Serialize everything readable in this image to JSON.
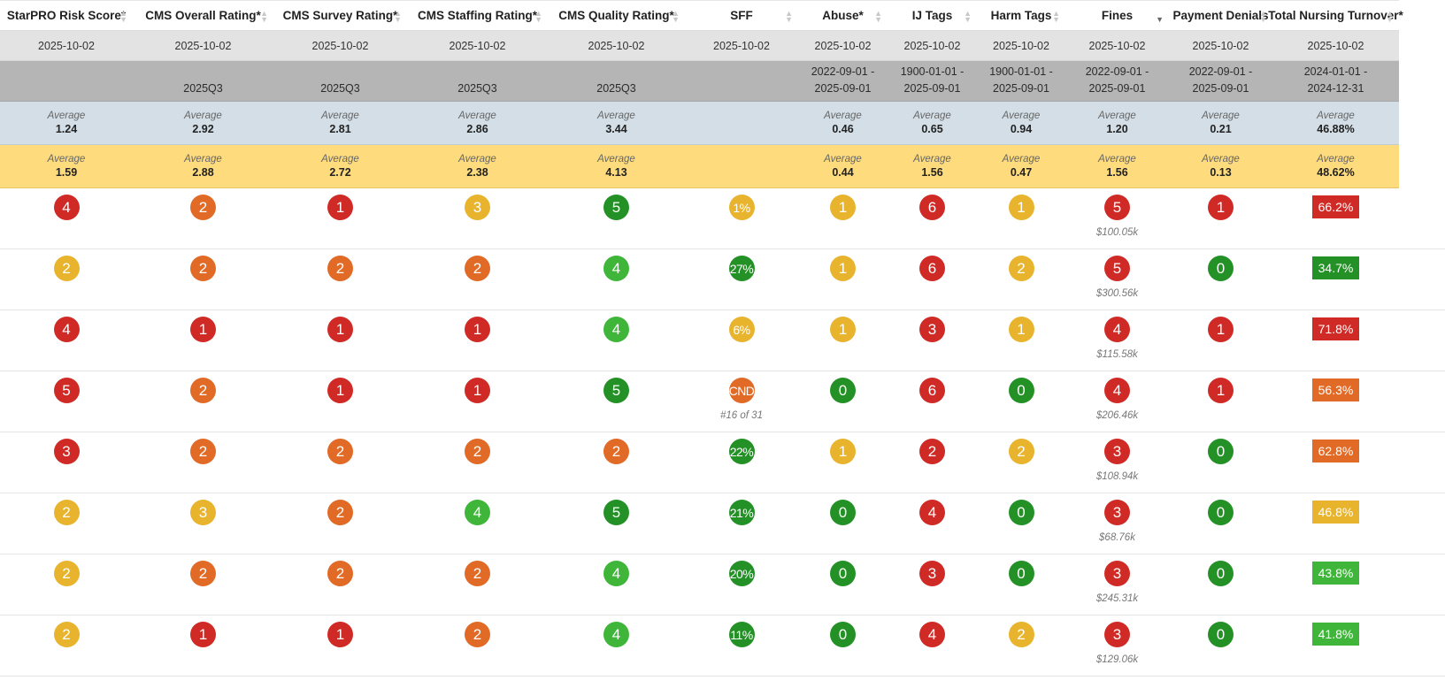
{
  "columns": [
    {
      "label": "StarPRO Risk Score*",
      "date": "2025-10-02",
      "period": [
        "",
        ""
      ],
      "avg_all": "1.24",
      "avg_sel": "1.59"
    },
    {
      "label": "CMS Overall Rating*",
      "date": "2025-10-02",
      "period": [
        "",
        "2025Q3"
      ],
      "avg_all": "2.92",
      "avg_sel": "2.88"
    },
    {
      "label": "CMS Survey Rating*",
      "date": "2025-10-02",
      "period": [
        "",
        "2025Q3"
      ],
      "avg_all": "2.81",
      "avg_sel": "2.72"
    },
    {
      "label": "CMS Staffing Rating*",
      "date": "2025-10-02",
      "period": [
        "",
        "2025Q3"
      ],
      "avg_all": "2.86",
      "avg_sel": "2.38"
    },
    {
      "label": "CMS Quality Rating*",
      "date": "2025-10-02",
      "period": [
        "",
        "2025Q3"
      ],
      "avg_all": "3.44",
      "avg_sel": "4.13"
    },
    {
      "label": "SFF",
      "date": "2025-10-02",
      "period": [
        "",
        ""
      ],
      "avg_all": "",
      "avg_sel": ""
    },
    {
      "label": "Abuse*",
      "date": "2025-10-02",
      "period": [
        "2022-09-01 -",
        "2025-09-01"
      ],
      "avg_all": "0.46",
      "avg_sel": "0.44"
    },
    {
      "label": "IJ Tags",
      "date": "2025-10-02",
      "period": [
        "1900-01-01 -",
        "2025-09-01"
      ],
      "avg_all": "0.65",
      "avg_sel": "1.56"
    },
    {
      "label": "Harm Tags",
      "date": "2025-10-02",
      "period": [
        "1900-01-01 -",
        "2025-09-01"
      ],
      "avg_all": "0.94",
      "avg_sel": "0.47"
    },
    {
      "label": "Fines",
      "date": "2025-10-02",
      "period": [
        "2022-09-01 -",
        "2025-09-01"
      ],
      "avg_all": "1.20",
      "avg_sel": "1.56"
    },
    {
      "label": "Payment Denials",
      "date": "2025-10-02",
      "period": [
        "2022-09-01 -",
        "2025-09-01"
      ],
      "avg_all": "0.21",
      "avg_sel": "0.13"
    },
    {
      "label": "Total Nursing Turnover*",
      "date": "2025-10-02",
      "period": [
        "2024-01-01 -",
        "2024-12-31"
      ],
      "avg_all": "46.88%",
      "avg_sel": "48.62%"
    }
  ],
  "avg_label": "Average",
  "colors": {
    "red": "#d02a26",
    "orange": "#e16a26",
    "yellow": "#e8b42e",
    "light_green": "#3fb63a",
    "dark_green": "#249126"
  },
  "rows": [
    {
      "cells": [
        {
          "v": "4",
          "c": "red"
        },
        {
          "v": "2",
          "c": "orange"
        },
        {
          "v": "1",
          "c": "red"
        },
        {
          "v": "3",
          "c": "yellow"
        },
        {
          "v": "5",
          "c": "dgreen"
        },
        {
          "v": "1%",
          "c": "yellow",
          "sub": ""
        },
        {
          "v": "1",
          "c": "yellow"
        },
        {
          "v": "6",
          "c": "red"
        },
        {
          "v": "1",
          "c": "yellow"
        },
        {
          "v": "5",
          "c": "red",
          "sub": "$100.05k"
        },
        {
          "v": "1",
          "c": "red"
        },
        {
          "v": "66.2%",
          "c": "red"
        }
      ]
    },
    {
      "cells": [
        {
          "v": "2",
          "c": "yellow"
        },
        {
          "v": "2",
          "c": "orange"
        },
        {
          "v": "2",
          "c": "orange"
        },
        {
          "v": "2",
          "c": "orange"
        },
        {
          "v": "4",
          "c": "lgreen"
        },
        {
          "v": "27%",
          "c": "dgreen",
          "sub": ""
        },
        {
          "v": "1",
          "c": "yellow"
        },
        {
          "v": "6",
          "c": "red"
        },
        {
          "v": "2",
          "c": "yellow"
        },
        {
          "v": "5",
          "c": "red",
          "sub": "$300.56k"
        },
        {
          "v": "0",
          "c": "dgreen"
        },
        {
          "v": "34.7%",
          "c": "dgreen"
        }
      ]
    },
    {
      "cells": [
        {
          "v": "4",
          "c": "red"
        },
        {
          "v": "1",
          "c": "red"
        },
        {
          "v": "1",
          "c": "red"
        },
        {
          "v": "1",
          "c": "red"
        },
        {
          "v": "4",
          "c": "lgreen"
        },
        {
          "v": "6%",
          "c": "yellow",
          "sub": ""
        },
        {
          "v": "1",
          "c": "yellow"
        },
        {
          "v": "3",
          "c": "red"
        },
        {
          "v": "1",
          "c": "yellow"
        },
        {
          "v": "4",
          "c": "red",
          "sub": "$115.58k"
        },
        {
          "v": "1",
          "c": "red"
        },
        {
          "v": "71.8%",
          "c": "red"
        }
      ]
    },
    {
      "cells": [
        {
          "v": "5",
          "c": "red"
        },
        {
          "v": "2",
          "c": "orange"
        },
        {
          "v": "1",
          "c": "red"
        },
        {
          "v": "1",
          "c": "red"
        },
        {
          "v": "5",
          "c": "dgreen"
        },
        {
          "v": "CND",
          "c": "orange",
          "sub": "#16 of 31"
        },
        {
          "v": "0",
          "c": "dgreen"
        },
        {
          "v": "6",
          "c": "red"
        },
        {
          "v": "0",
          "c": "dgreen"
        },
        {
          "v": "4",
          "c": "red",
          "sub": "$206.46k"
        },
        {
          "v": "1",
          "c": "red"
        },
        {
          "v": "56.3%",
          "c": "orange"
        }
      ]
    },
    {
      "cells": [
        {
          "v": "3",
          "c": "red"
        },
        {
          "v": "2",
          "c": "orange"
        },
        {
          "v": "2",
          "c": "orange"
        },
        {
          "v": "2",
          "c": "orange"
        },
        {
          "v": "2",
          "c": "orange"
        },
        {
          "v": "22%",
          "c": "dgreen",
          "sub": ""
        },
        {
          "v": "1",
          "c": "yellow"
        },
        {
          "v": "2",
          "c": "red"
        },
        {
          "v": "2",
          "c": "yellow"
        },
        {
          "v": "3",
          "c": "red",
          "sub": "$108.94k"
        },
        {
          "v": "0",
          "c": "dgreen"
        },
        {
          "v": "62.8%",
          "c": "orange"
        }
      ]
    },
    {
      "cells": [
        {
          "v": "2",
          "c": "yellow"
        },
        {
          "v": "3",
          "c": "yellow"
        },
        {
          "v": "2",
          "c": "orange"
        },
        {
          "v": "4",
          "c": "lgreen"
        },
        {
          "v": "5",
          "c": "dgreen"
        },
        {
          "v": "21%",
          "c": "dgreen",
          "sub": ""
        },
        {
          "v": "0",
          "c": "dgreen"
        },
        {
          "v": "4",
          "c": "red"
        },
        {
          "v": "0",
          "c": "dgreen"
        },
        {
          "v": "3",
          "c": "red",
          "sub": "$68.76k"
        },
        {
          "v": "0",
          "c": "dgreen"
        },
        {
          "v": "46.8%",
          "c": "yellow"
        }
      ]
    },
    {
      "cells": [
        {
          "v": "2",
          "c": "yellow"
        },
        {
          "v": "2",
          "c": "orange"
        },
        {
          "v": "2",
          "c": "orange"
        },
        {
          "v": "2",
          "c": "orange"
        },
        {
          "v": "4",
          "c": "lgreen"
        },
        {
          "v": "20%",
          "c": "dgreen",
          "sub": ""
        },
        {
          "v": "0",
          "c": "dgreen"
        },
        {
          "v": "3",
          "c": "red"
        },
        {
          "v": "0",
          "c": "dgreen"
        },
        {
          "v": "3",
          "c": "red",
          "sub": "$245.31k"
        },
        {
          "v": "0",
          "c": "dgreen"
        },
        {
          "v": "43.8%",
          "c": "lgreen"
        }
      ]
    },
    {
      "cells": [
        {
          "v": "2",
          "c": "yellow"
        },
        {
          "v": "1",
          "c": "red"
        },
        {
          "v": "1",
          "c": "red"
        },
        {
          "v": "2",
          "c": "orange"
        },
        {
          "v": "4",
          "c": "lgreen"
        },
        {
          "v": "11%",
          "c": "dgreen",
          "sub": ""
        },
        {
          "v": "0",
          "c": "dgreen"
        },
        {
          "v": "4",
          "c": "red"
        },
        {
          "v": "2",
          "c": "yellow"
        },
        {
          "v": "3",
          "c": "red",
          "sub": "$129.06k"
        },
        {
          "v": "0",
          "c": "dgreen"
        },
        {
          "v": "41.8%",
          "c": "lgreen"
        }
      ]
    }
  ]
}
